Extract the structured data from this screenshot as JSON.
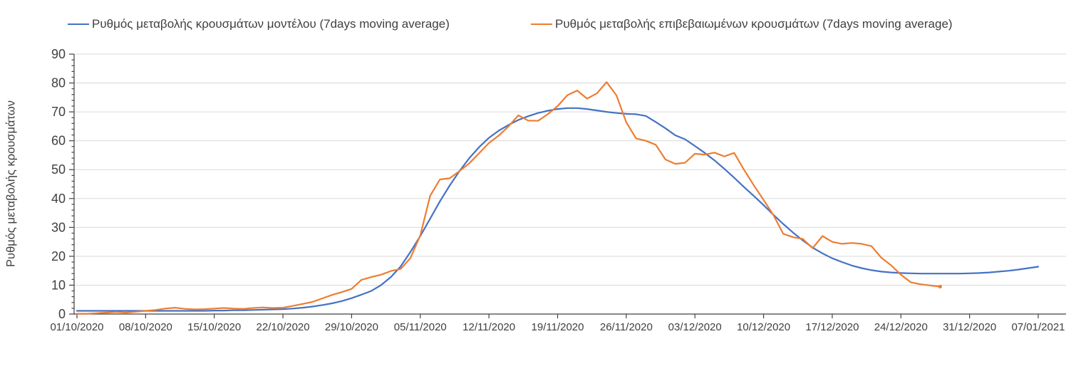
{
  "chart_data": {
    "type": "line",
    "title": "",
    "ylabel": "Ρυθμός μεταβολής κρουσμάτων",
    "xlabel": "",
    "ylim": [
      0,
      90
    ],
    "y_ticks": [
      0,
      10,
      20,
      30,
      40,
      50,
      60,
      70,
      80,
      90
    ],
    "y_minor_tick_step": 2,
    "grid": "horizontal",
    "legend_position": "top",
    "x_start_date": "01/10/2020",
    "x_step_days": 1,
    "x_total_days": 98,
    "x_tick_interval_days": 7,
    "x_tick_labels": [
      "01/10/2020",
      "08/10/2020",
      "15/10/2020",
      "22/10/2020",
      "29/10/2020",
      "05/11/2020",
      "12/11/2020",
      "19/11/2020",
      "26/11/2020",
      "03/12/2020",
      "10/12/2020",
      "17/12/2020",
      "24/12/2020",
      "31/12/2020",
      "07/01/2021"
    ],
    "series": [
      {
        "name": "Ρυθμός μεταβολής κρουσμάτων μοντέλου (7days moving average)",
        "color": "#4472C4",
        "start_day": 0,
        "values": [
          1.1,
          1.1,
          1.1,
          1.1,
          1.1,
          1.1,
          1.1,
          1.1,
          1.1,
          1.1,
          1.1,
          1.1,
          1.1,
          1.1,
          1.2,
          1.2,
          1.3,
          1.3,
          1.4,
          1.5,
          1.6,
          1.7,
          1.9,
          2.2,
          2.6,
          3.1,
          3.7,
          4.5,
          5.5,
          6.7,
          8.0,
          10.0,
          12.8,
          16.5,
          21.5,
          27.0,
          33.0,
          39.0,
          44.5,
          49.5,
          54.0,
          57.8,
          61.0,
          63.5,
          65.5,
          67.2,
          68.5,
          69.6,
          70.4,
          71.0,
          71.3,
          71.3,
          71.0,
          70.5,
          70.0,
          69.6,
          69.3,
          69.2,
          68.6,
          66.5,
          64.3,
          61.9,
          60.5,
          58.2,
          55.8,
          53.2,
          50.3,
          47.2,
          44.0,
          40.9,
          37.7,
          34.4,
          31.2,
          28.2,
          25.5,
          23.0,
          21.0,
          19.3,
          18.0,
          16.8,
          15.9,
          15.2,
          14.7,
          14.4,
          14.2,
          14.1,
          14.0,
          14.0,
          14.0,
          14.0,
          14.0,
          14.1,
          14.2,
          14.4,
          14.7,
          15.0,
          15.4,
          15.9,
          16.4
        ]
      },
      {
        "name": "Ρυθμός μεταβολής επιβεβαιωμένων κρουσμάτων (7days moving average)",
        "color": "#ED7D31",
        "start_day": 0,
        "values": [
          0.1,
          0.1,
          0.3,
          0.5,
          0.7,
          0.5,
          0.8,
          1.1,
          1.4,
          1.9,
          2.2,
          1.8,
          1.6,
          1.7,
          1.9,
          2.1,
          1.9,
          1.8,
          2.1,
          2.3,
          2.1,
          2.2,
          2.8,
          3.5,
          4.2,
          5.4,
          6.6,
          7.6,
          8.7,
          11.8,
          12.8,
          13.6,
          14.9,
          15.6,
          19.4,
          27.2,
          40.9,
          46.6,
          47.0,
          49.5,
          52.2,
          55.7,
          59.2,
          61.8,
          65.0,
          68.8,
          67.0,
          66.9,
          69.2,
          72.0,
          75.8,
          77.4,
          74.6,
          76.4,
          80.3,
          75.7,
          66.4,
          60.8,
          60.0,
          58.6,
          53.5,
          52.0,
          52.4,
          55.5,
          55.2,
          55.9,
          54.6,
          55.8,
          50.0,
          44.6,
          39.5,
          34.3,
          27.8,
          26.6,
          26.0,
          22.8,
          27.0,
          25.0,
          24.3,
          24.6,
          24.3,
          23.5,
          19.5,
          16.9,
          13.6,
          11.0,
          10.3,
          9.9,
          9.5
        ]
      }
    ],
    "colors": {
      "model_line": "#4472C4",
      "confirmed_line": "#ED7D31",
      "gridline": "#D9D9D9",
      "axis": "#404040",
      "text": "#404040"
    }
  }
}
